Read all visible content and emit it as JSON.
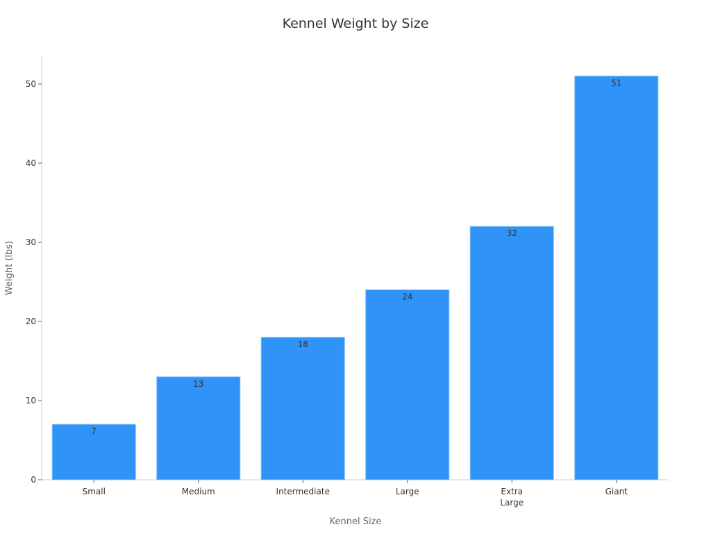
{
  "chart_data": {
    "type": "bar",
    "title": "Kennel Weight by Size",
    "xlabel": "Kennel Size",
    "ylabel": "Weight (lbs)",
    "categories": [
      [
        "Small"
      ],
      [
        "Medium"
      ],
      [
        "Intermediate"
      ],
      [
        "Large"
      ],
      [
        "Extra",
        "Large"
      ],
      [
        "Giant"
      ]
    ],
    "values": [
      7,
      13,
      18,
      24,
      32,
      51
    ],
    "ylim": [
      0,
      53.5
    ],
    "yticks": [
      0,
      10,
      20,
      30,
      40,
      50
    ],
    "grid": false,
    "colors": {
      "bar": "#2f93f8",
      "bar_edge": "#7fbcf8",
      "axis": "#cccccc",
      "text": "#333333",
      "label": "#666666"
    }
  }
}
